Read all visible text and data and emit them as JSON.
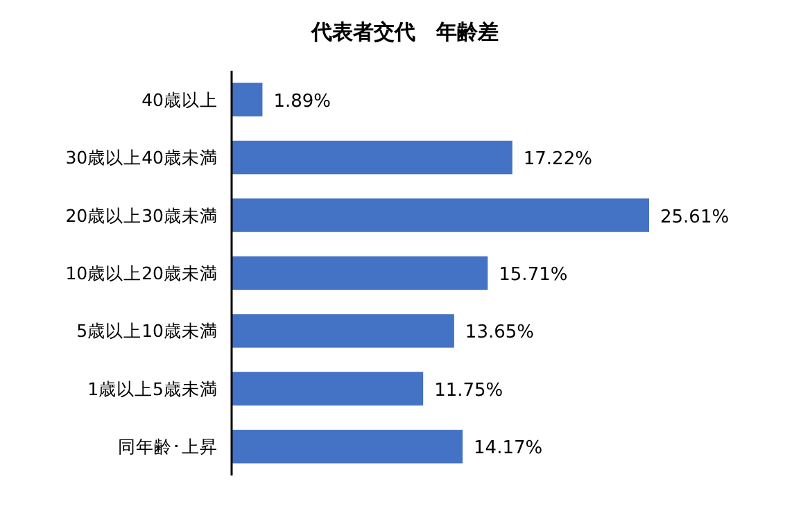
{
  "chart_data": {
    "type": "bar",
    "orientation": "horizontal",
    "title": "代表者交代　年齢差",
    "categories": [
      "40歳以上",
      "30歳以上40歳未満",
      "20歳以上30歳未満",
      "10歳以上20歳未満",
      "5歳以上10歳未満",
      "1歳以上5歳未満",
      "同年齢･上昇"
    ],
    "values": [
      1.89,
      17.22,
      25.61,
      15.71,
      13.65,
      11.75,
      14.17
    ],
    "value_labels": [
      "1.89%",
      "17.22%",
      "25.61%",
      "15.71%",
      "13.65%",
      "11.75%",
      "14.17%"
    ],
    "color": "#4472c4"
  }
}
